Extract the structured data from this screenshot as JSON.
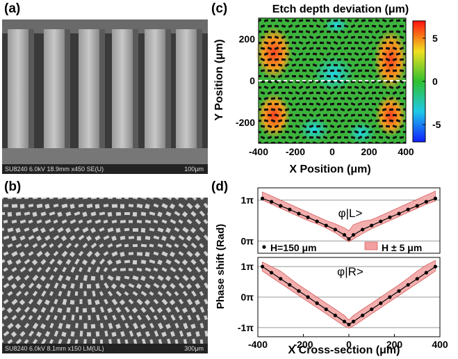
{
  "panels": {
    "a": {
      "label": "(a)",
      "footer": "SU8240 6.0kV 18.9mm x450 SE(U)",
      "scale": "100μm"
    },
    "b": {
      "label": "(b)",
      "footer": "SU8240 6.0kV 8.1mm x150 LM(UL)",
      "scale": "300μm"
    },
    "c": {
      "label": "(c)"
    },
    "d": {
      "label": "(d)"
    }
  },
  "chart_data": [
    {
      "type": "heatmap",
      "title": "Etch depth deviation (μm)",
      "xlabel": "X Position (μm)",
      "ylabel": "Y Position (μm)",
      "xlim": [
        -400,
        400
      ],
      "ylim": [
        -300,
        300
      ],
      "x_ticks": [
        "-400",
        "-200",
        "0",
        "200",
        "400"
      ],
      "y_ticks": [
        "200",
        "0",
        "-200"
      ],
      "colorbar": {
        "min": -7,
        "max": 7,
        "ticks": [
          "5",
          "0",
          "-5"
        ]
      },
      "cross_section_y": 0
    },
    {
      "type": "line",
      "ylabel": "Phase shift (Rad)",
      "xlabel": "X Cross-section (μm)",
      "xlim": [
        -400,
        400
      ],
      "x_ticks": [
        "-400",
        "-200",
        "0",
        "200",
        "400"
      ],
      "subplots": [
        {
          "annotation": "φ|L>",
          "y_ticks": [
            "1π",
            "0π"
          ],
          "ylim": [
            -0.3,
            1.3
          ],
          "legend": [
            "H=150 μm",
            "H ± 5 μm"
          ],
          "x": [
            -380,
            -340,
            -300,
            -260,
            -220,
            -180,
            -140,
            -100,
            -60,
            -20,
            0,
            20,
            60,
            100,
            140,
            180,
            220,
            260,
            300,
            340,
            380
          ],
          "y": [
            1.04,
            0.96,
            0.86,
            0.77,
            0.67,
            0.58,
            0.48,
            0.38,
            0.28,
            0.15,
            0.05,
            0.15,
            0.28,
            0.38,
            0.48,
            0.58,
            0.67,
            0.77,
            0.86,
            0.96,
            1.04
          ],
          "band_upper": [
            1.2,
            1.1,
            1.0,
            0.9,
            0.8,
            0.7,
            0.6,
            0.5,
            0.42,
            0.32,
            0.25,
            0.4,
            0.48,
            0.52,
            0.62,
            0.72,
            0.82,
            0.92,
            1.02,
            1.12,
            1.22
          ],
          "band_lower": [
            1.0,
            0.9,
            0.8,
            0.7,
            0.6,
            0.5,
            0.42,
            0.32,
            0.2,
            0.05,
            -0.02,
            0.05,
            0.18,
            0.3,
            0.4,
            0.5,
            0.6,
            0.7,
            0.8,
            0.9,
            0.98
          ]
        },
        {
          "annotation": "φ|R>",
          "y_ticks": [
            "1π",
            "0π",
            "-1π"
          ],
          "ylim": [
            -1.3,
            1.3
          ],
          "x": [
            -380,
            -340,
            -300,
            -260,
            -220,
            -180,
            -140,
            -100,
            -60,
            -20,
            0,
            20,
            60,
            100,
            140,
            180,
            220,
            260,
            300,
            340,
            380
          ],
          "y": [
            1.0,
            0.8,
            0.6,
            0.4,
            0.2,
            0.0,
            -0.2,
            -0.4,
            -0.6,
            -0.8,
            -0.9,
            -0.8,
            -0.6,
            -0.4,
            -0.2,
            0.0,
            0.2,
            0.4,
            0.6,
            0.8,
            1.0
          ],
          "band_upper": [
            1.15,
            1.0,
            0.85,
            0.62,
            0.4,
            0.2,
            0.0,
            -0.2,
            -0.4,
            -0.6,
            -0.75,
            -0.6,
            -0.4,
            -0.2,
            0.0,
            0.2,
            0.4,
            0.62,
            0.85,
            1.05,
            1.2
          ],
          "band_lower": [
            0.85,
            0.65,
            0.45,
            0.25,
            0.05,
            -0.15,
            -0.35,
            -0.55,
            -0.75,
            -0.95,
            -1.02,
            -0.95,
            -0.75,
            -0.55,
            -0.35,
            -0.15,
            0.05,
            0.25,
            0.45,
            0.65,
            0.85
          ]
        }
      ]
    }
  ],
  "colors": {
    "band": "#f2a0a0",
    "band_edge": "#d04040",
    "marker": "#000000"
  }
}
